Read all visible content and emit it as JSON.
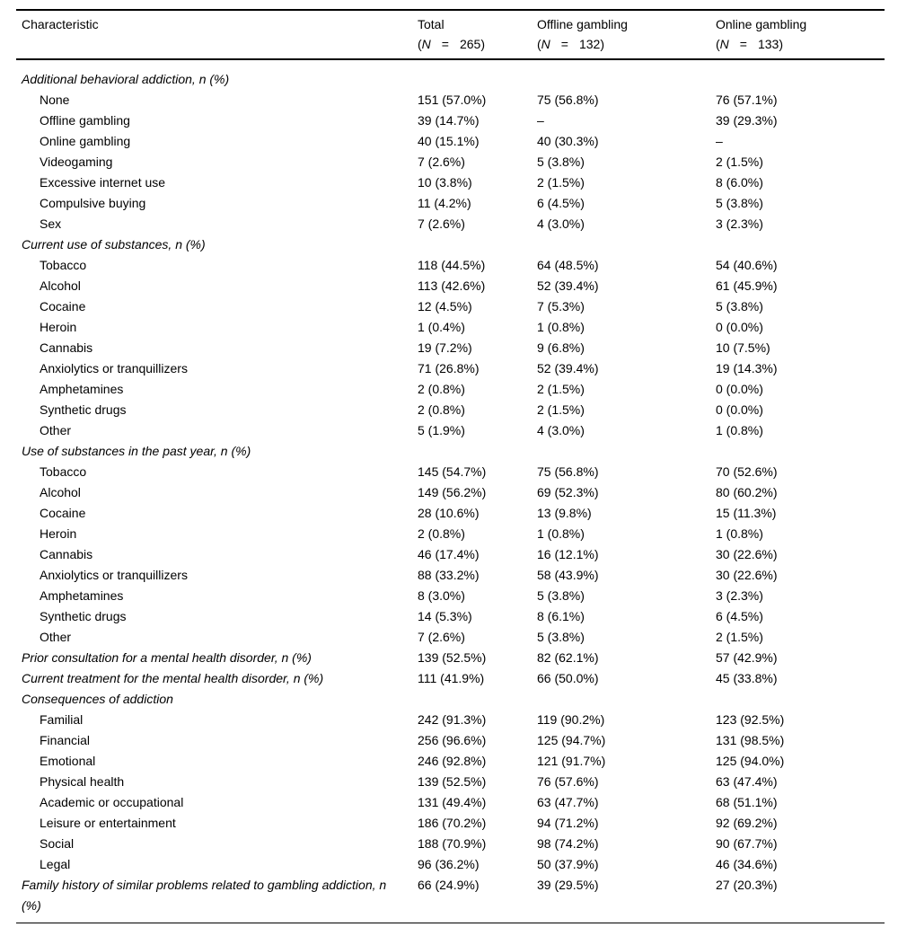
{
  "colors": {
    "text": "#000000",
    "rule": "#000000",
    "background": "#ffffff"
  },
  "table": {
    "header": {
      "characteristic": "Characteristic",
      "n_open": "(",
      "n_var": "N",
      "n_eq": "=",
      "n_close": ")",
      "columns": [
        {
          "label": "Total",
          "n": "265"
        },
        {
          "label": "Offline gambling",
          "n": "132"
        },
        {
          "label": "Online gambling",
          "n": "133"
        }
      ]
    },
    "rows": [
      {
        "label": "Additional behavioral addiction, n (%)",
        "italic": true,
        "indent": false,
        "section": true,
        "total": "",
        "offline": "",
        "online": ""
      },
      {
        "label": "None",
        "italic": false,
        "indent": true,
        "total": "151 (57.0%)",
        "offline": "75 (56.8%)",
        "online": "76 (57.1%)"
      },
      {
        "label": "Offline gambling",
        "italic": false,
        "indent": true,
        "total": "39 (14.7%)",
        "offline": "–",
        "online": "39 (29.3%)"
      },
      {
        "label": "Online gambling",
        "italic": false,
        "indent": true,
        "total": "40 (15.1%)",
        "offline": "40 (30.3%)",
        "online": "–"
      },
      {
        "label": "Videogaming",
        "italic": false,
        "indent": true,
        "total": "7 (2.6%)",
        "offline": "5 (3.8%)",
        "online": "2 (1.5%)"
      },
      {
        "label": "Excessive internet use",
        "italic": false,
        "indent": true,
        "total": "10 (3.8%)",
        "offline": "2 (1.5%)",
        "online": "8 (6.0%)"
      },
      {
        "label": "Compulsive buying",
        "italic": false,
        "indent": true,
        "total": "11 (4.2%)",
        "offline": "6 (4.5%)",
        "online": "5 (3.8%)"
      },
      {
        "label": "Sex",
        "italic": false,
        "indent": true,
        "total": "7 (2.6%)",
        "offline": "4 (3.0%)",
        "online": "3 (2.3%)"
      },
      {
        "label": "Current use of substances, n (%)",
        "italic": true,
        "indent": false,
        "section": true,
        "total": "",
        "offline": "",
        "online": ""
      },
      {
        "label": "Tobacco",
        "italic": false,
        "indent": true,
        "total": "118 (44.5%)",
        "offline": "64 (48.5%)",
        "online": "54 (40.6%)"
      },
      {
        "label": "Alcohol",
        "italic": false,
        "indent": true,
        "total": "113 (42.6%)",
        "offline": "52 (39.4%)",
        "online": "61 (45.9%)"
      },
      {
        "label": "Cocaine",
        "italic": false,
        "indent": true,
        "total": "12 (4.5%)",
        "offline": "7 (5.3%)",
        "online": "5 (3.8%)"
      },
      {
        "label": "Heroin",
        "italic": false,
        "indent": true,
        "total": "1 (0.4%)",
        "offline": "1 (0.8%)",
        "online": "0 (0.0%)"
      },
      {
        "label": "Cannabis",
        "italic": false,
        "indent": true,
        "total": "19 (7.2%)",
        "offline": "9 (6.8%)",
        "online": "10 (7.5%)"
      },
      {
        "label": "Anxiolytics or tranquillizers",
        "italic": false,
        "indent": true,
        "total": "71 (26.8%)",
        "offline": "52 (39.4%)",
        "online": "19 (14.3%)"
      },
      {
        "label": "Amphetamines",
        "italic": false,
        "indent": true,
        "total": "2 (0.8%)",
        "offline": "2 (1.5%)",
        "online": "0 (0.0%)"
      },
      {
        "label": "Synthetic drugs",
        "italic": false,
        "indent": true,
        "total": "2 (0.8%)",
        "offline": "2 (1.5%)",
        "online": "0 (0.0%)"
      },
      {
        "label": "Other",
        "italic": false,
        "indent": true,
        "total": "5 (1.9%)",
        "offline": "4 (3.0%)",
        "online": "1 (0.8%)"
      },
      {
        "label": "Use of substances in the past year, n (%)",
        "italic": true,
        "indent": false,
        "section": true,
        "total": "",
        "offline": "",
        "online": ""
      },
      {
        "label": "Tobacco",
        "italic": false,
        "indent": true,
        "total": "145 (54.7%)",
        "offline": "75 (56.8%)",
        "online": "70 (52.6%)"
      },
      {
        "label": "Alcohol",
        "italic": false,
        "indent": true,
        "total": "149 (56.2%)",
        "offline": "69 (52.3%)",
        "online": "80 (60.2%)"
      },
      {
        "label": "Cocaine",
        "italic": false,
        "indent": true,
        "total": "28 (10.6%)",
        "offline": "13 (9.8%)",
        "online": "15 (11.3%)"
      },
      {
        "label": "Heroin",
        "italic": false,
        "indent": true,
        "total": "2 (0.8%)",
        "offline": "1 (0.8%)",
        "online": "1 (0.8%)"
      },
      {
        "label": "Cannabis",
        "italic": false,
        "indent": true,
        "total": "46 (17.4%)",
        "offline": "16 (12.1%)",
        "online": "30 (22.6%)"
      },
      {
        "label": "Anxiolytics or tranquillizers",
        "italic": false,
        "indent": true,
        "total": "88 (33.2%)",
        "offline": "58 (43.9%)",
        "online": "30 (22.6%)"
      },
      {
        "label": "Amphetamines",
        "italic": false,
        "indent": true,
        "total": "8 (3.0%)",
        "offline": "5 (3.8%)",
        "online": "3 (2.3%)"
      },
      {
        "label": "Synthetic drugs",
        "italic": false,
        "indent": true,
        "total": "14 (5.3%)",
        "offline": "8 (6.1%)",
        "online": "6 (4.5%)"
      },
      {
        "label": "Other",
        "italic": false,
        "indent": true,
        "total": "7 (2.6%)",
        "offline": "5 (3.8%)",
        "online": "2 (1.5%)"
      },
      {
        "label": "Prior consultation for a mental health disorder, n (%)",
        "italic": true,
        "indent": false,
        "total": "139 (52.5%)",
        "offline": "82 (62.1%)",
        "online": "57 (42.9%)"
      },
      {
        "label": "Current treatment for the mental health disorder, n (%)",
        "italic": true,
        "indent": false,
        "total": "111 (41.9%)",
        "offline": "66 (50.0%)",
        "online": "45 (33.8%)"
      },
      {
        "label": "Consequences of addiction",
        "italic": true,
        "indent": false,
        "section": true,
        "total": "",
        "offline": "",
        "online": ""
      },
      {
        "label": "Familial",
        "italic": false,
        "indent": true,
        "total": "242 (91.3%)",
        "offline": "119 (90.2%)",
        "online": "123 (92.5%)"
      },
      {
        "label": "Financial",
        "italic": false,
        "indent": true,
        "total": "256 (96.6%)",
        "offline": "125 (94.7%)",
        "online": "131 (98.5%)"
      },
      {
        "label": "Emotional",
        "italic": false,
        "indent": true,
        "total": "246 (92.8%)",
        "offline": "121 (91.7%)",
        "online": "125 (94.0%)"
      },
      {
        "label": "Physical health",
        "italic": false,
        "indent": true,
        "total": "139 (52.5%)",
        "offline": "76 (57.6%)",
        "online": "63 (47.4%)"
      },
      {
        "label": "Academic or occupational",
        "italic": false,
        "indent": true,
        "total": "131 (49.4%)",
        "offline": "63 (47.7%)",
        "online": "68 (51.1%)"
      },
      {
        "label": "Leisure or entertainment",
        "italic": false,
        "indent": true,
        "total": "186 (70.2%)",
        "offline": "94 (71.2%)",
        "online": "92 (69.2%)"
      },
      {
        "label": "Social",
        "italic": false,
        "indent": true,
        "total": "188 (70.9%)",
        "offline": "98 (74.2%)",
        "online": "90 (67.7%)"
      },
      {
        "label": "Legal",
        "italic": false,
        "indent": true,
        "total": "96 (36.2%)",
        "offline": "50 (37.9%)",
        "online": "46 (34.6%)"
      },
      {
        "label": "Family history of similar problems related to gambling addiction, n (%)",
        "italic": true,
        "indent": false,
        "total": "66 (24.9%)",
        "offline": "39 (29.5%)",
        "online": "27 (20.3%)"
      }
    ]
  }
}
